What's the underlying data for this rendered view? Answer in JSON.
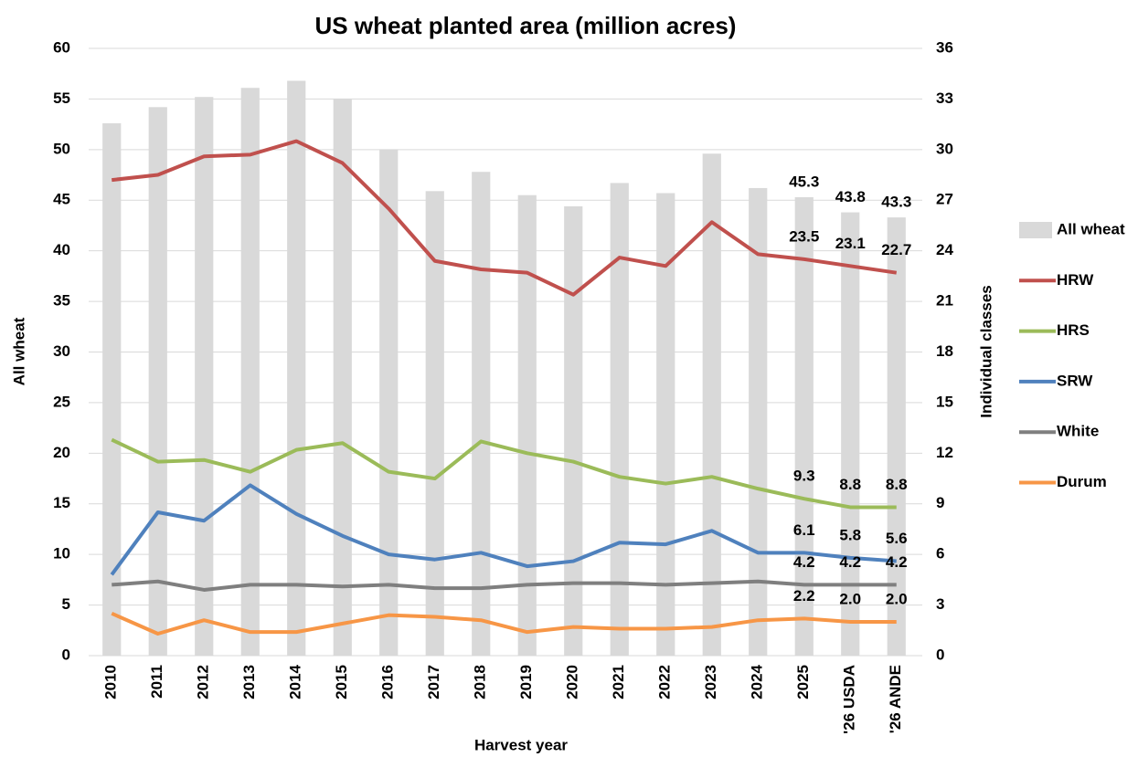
{
  "chart_data": {
    "type": "combo",
    "title": "US wheat planted area (million acres)",
    "x_label": "Harvest year",
    "y_label": "All wheat",
    "y2_label": "Individual classes",
    "categories": [
      "2010",
      "2011",
      "2012",
      "2013",
      "2014",
      "2015",
      "2016",
      "2017",
      "2018",
      "2019",
      "2020",
      "2021",
      "2022",
      "2023",
      "2024",
      "2025",
      "'26 USDA",
      "'26 ANDE"
    ],
    "ylim": [
      0,
      60
    ],
    "yticks": [
      0,
      5,
      10,
      15,
      20,
      25,
      30,
      35,
      40,
      45,
      50,
      55,
      60
    ],
    "y2lim": [
      0,
      36
    ],
    "y2ticks": [
      0,
      3,
      6,
      9,
      12,
      15,
      18,
      21,
      24,
      27,
      30,
      33,
      36
    ],
    "grid": true,
    "legend": "right",
    "series": [
      {
        "name": "All wheat",
        "type": "bar",
        "axis": "y",
        "color": "#d9d9d9",
        "label_color": "#000000",
        "values": [
          52.6,
          54.2,
          55.2,
          56.1,
          56.8,
          55.0,
          50.0,
          45.9,
          47.8,
          45.5,
          44.4,
          46.7,
          45.7,
          49.6,
          46.2,
          45.3,
          43.8,
          43.3
        ],
        "value_labels": [
          null,
          null,
          null,
          null,
          null,
          null,
          null,
          null,
          null,
          null,
          null,
          null,
          null,
          null,
          null,
          "45.3",
          "43.8",
          "43.3"
        ]
      },
      {
        "name": "HRW",
        "type": "line",
        "axis": "y2",
        "color": "#c0504d",
        "label_color": "#c00000",
        "values": [
          28.2,
          28.5,
          29.6,
          29.7,
          30.5,
          29.2,
          26.5,
          23.4,
          22.9,
          22.7,
          21.4,
          23.6,
          23.1,
          25.7,
          23.8,
          23.5,
          23.1,
          22.7
        ],
        "value_labels": [
          null,
          null,
          null,
          null,
          null,
          null,
          null,
          null,
          null,
          null,
          null,
          null,
          null,
          null,
          null,
          "23.5",
          "23.1",
          "22.7"
        ]
      },
      {
        "name": "HRS",
        "type": "line",
        "axis": "y2",
        "color": "#9bbb59",
        "label_color": "#4f6228",
        "values": [
          12.8,
          11.5,
          11.6,
          10.9,
          12.2,
          12.6,
          10.9,
          10.5,
          12.7,
          12.0,
          11.5,
          10.6,
          10.2,
          10.6,
          9.9,
          9.3,
          8.8,
          8.8
        ],
        "value_labels": [
          null,
          null,
          null,
          null,
          null,
          null,
          null,
          null,
          null,
          null,
          null,
          null,
          null,
          null,
          null,
          "9.3",
          "8.8",
          "8.8"
        ]
      },
      {
        "name": "SRW",
        "type": "line",
        "axis": "y2",
        "color": "#4f81bd",
        "label_color": "#1f497d",
        "values": [
          4.8,
          8.5,
          8.0,
          10.1,
          8.4,
          7.1,
          6.0,
          5.7,
          6.1,
          5.3,
          5.6,
          6.7,
          6.6,
          7.4,
          6.1,
          6.1,
          5.8,
          5.6
        ],
        "value_labels": [
          null,
          null,
          null,
          null,
          null,
          null,
          null,
          null,
          null,
          null,
          null,
          null,
          null,
          null,
          null,
          "6.1",
          "5.8",
          "5.6"
        ]
      },
      {
        "name": "White",
        "type": "line",
        "axis": "y2",
        "color": "#7f7f7f",
        "label_color": "#808080",
        "values": [
          4.2,
          4.4,
          3.9,
          4.2,
          4.2,
          4.1,
          4.2,
          4.0,
          4.0,
          4.2,
          4.3,
          4.3,
          4.2,
          4.3,
          4.4,
          4.2,
          4.2,
          4.2
        ],
        "value_labels": [
          null,
          null,
          null,
          null,
          null,
          null,
          null,
          null,
          null,
          null,
          null,
          null,
          null,
          null,
          null,
          "4.2",
          "4.2",
          "4.2"
        ]
      },
      {
        "name": "Durum",
        "type": "line",
        "axis": "y2",
        "color": "#f79646",
        "label_color": "#e46c0a",
        "values": [
          2.5,
          1.3,
          2.1,
          1.4,
          1.4,
          1.9,
          2.4,
          2.3,
          2.1,
          1.4,
          1.7,
          1.6,
          1.6,
          1.7,
          2.1,
          2.2,
          2.0,
          2.0
        ],
        "value_labels": [
          null,
          null,
          null,
          null,
          null,
          null,
          null,
          null,
          null,
          null,
          null,
          null,
          null,
          null,
          null,
          "2.2",
          "2.0",
          "2.0"
        ]
      }
    ]
  }
}
